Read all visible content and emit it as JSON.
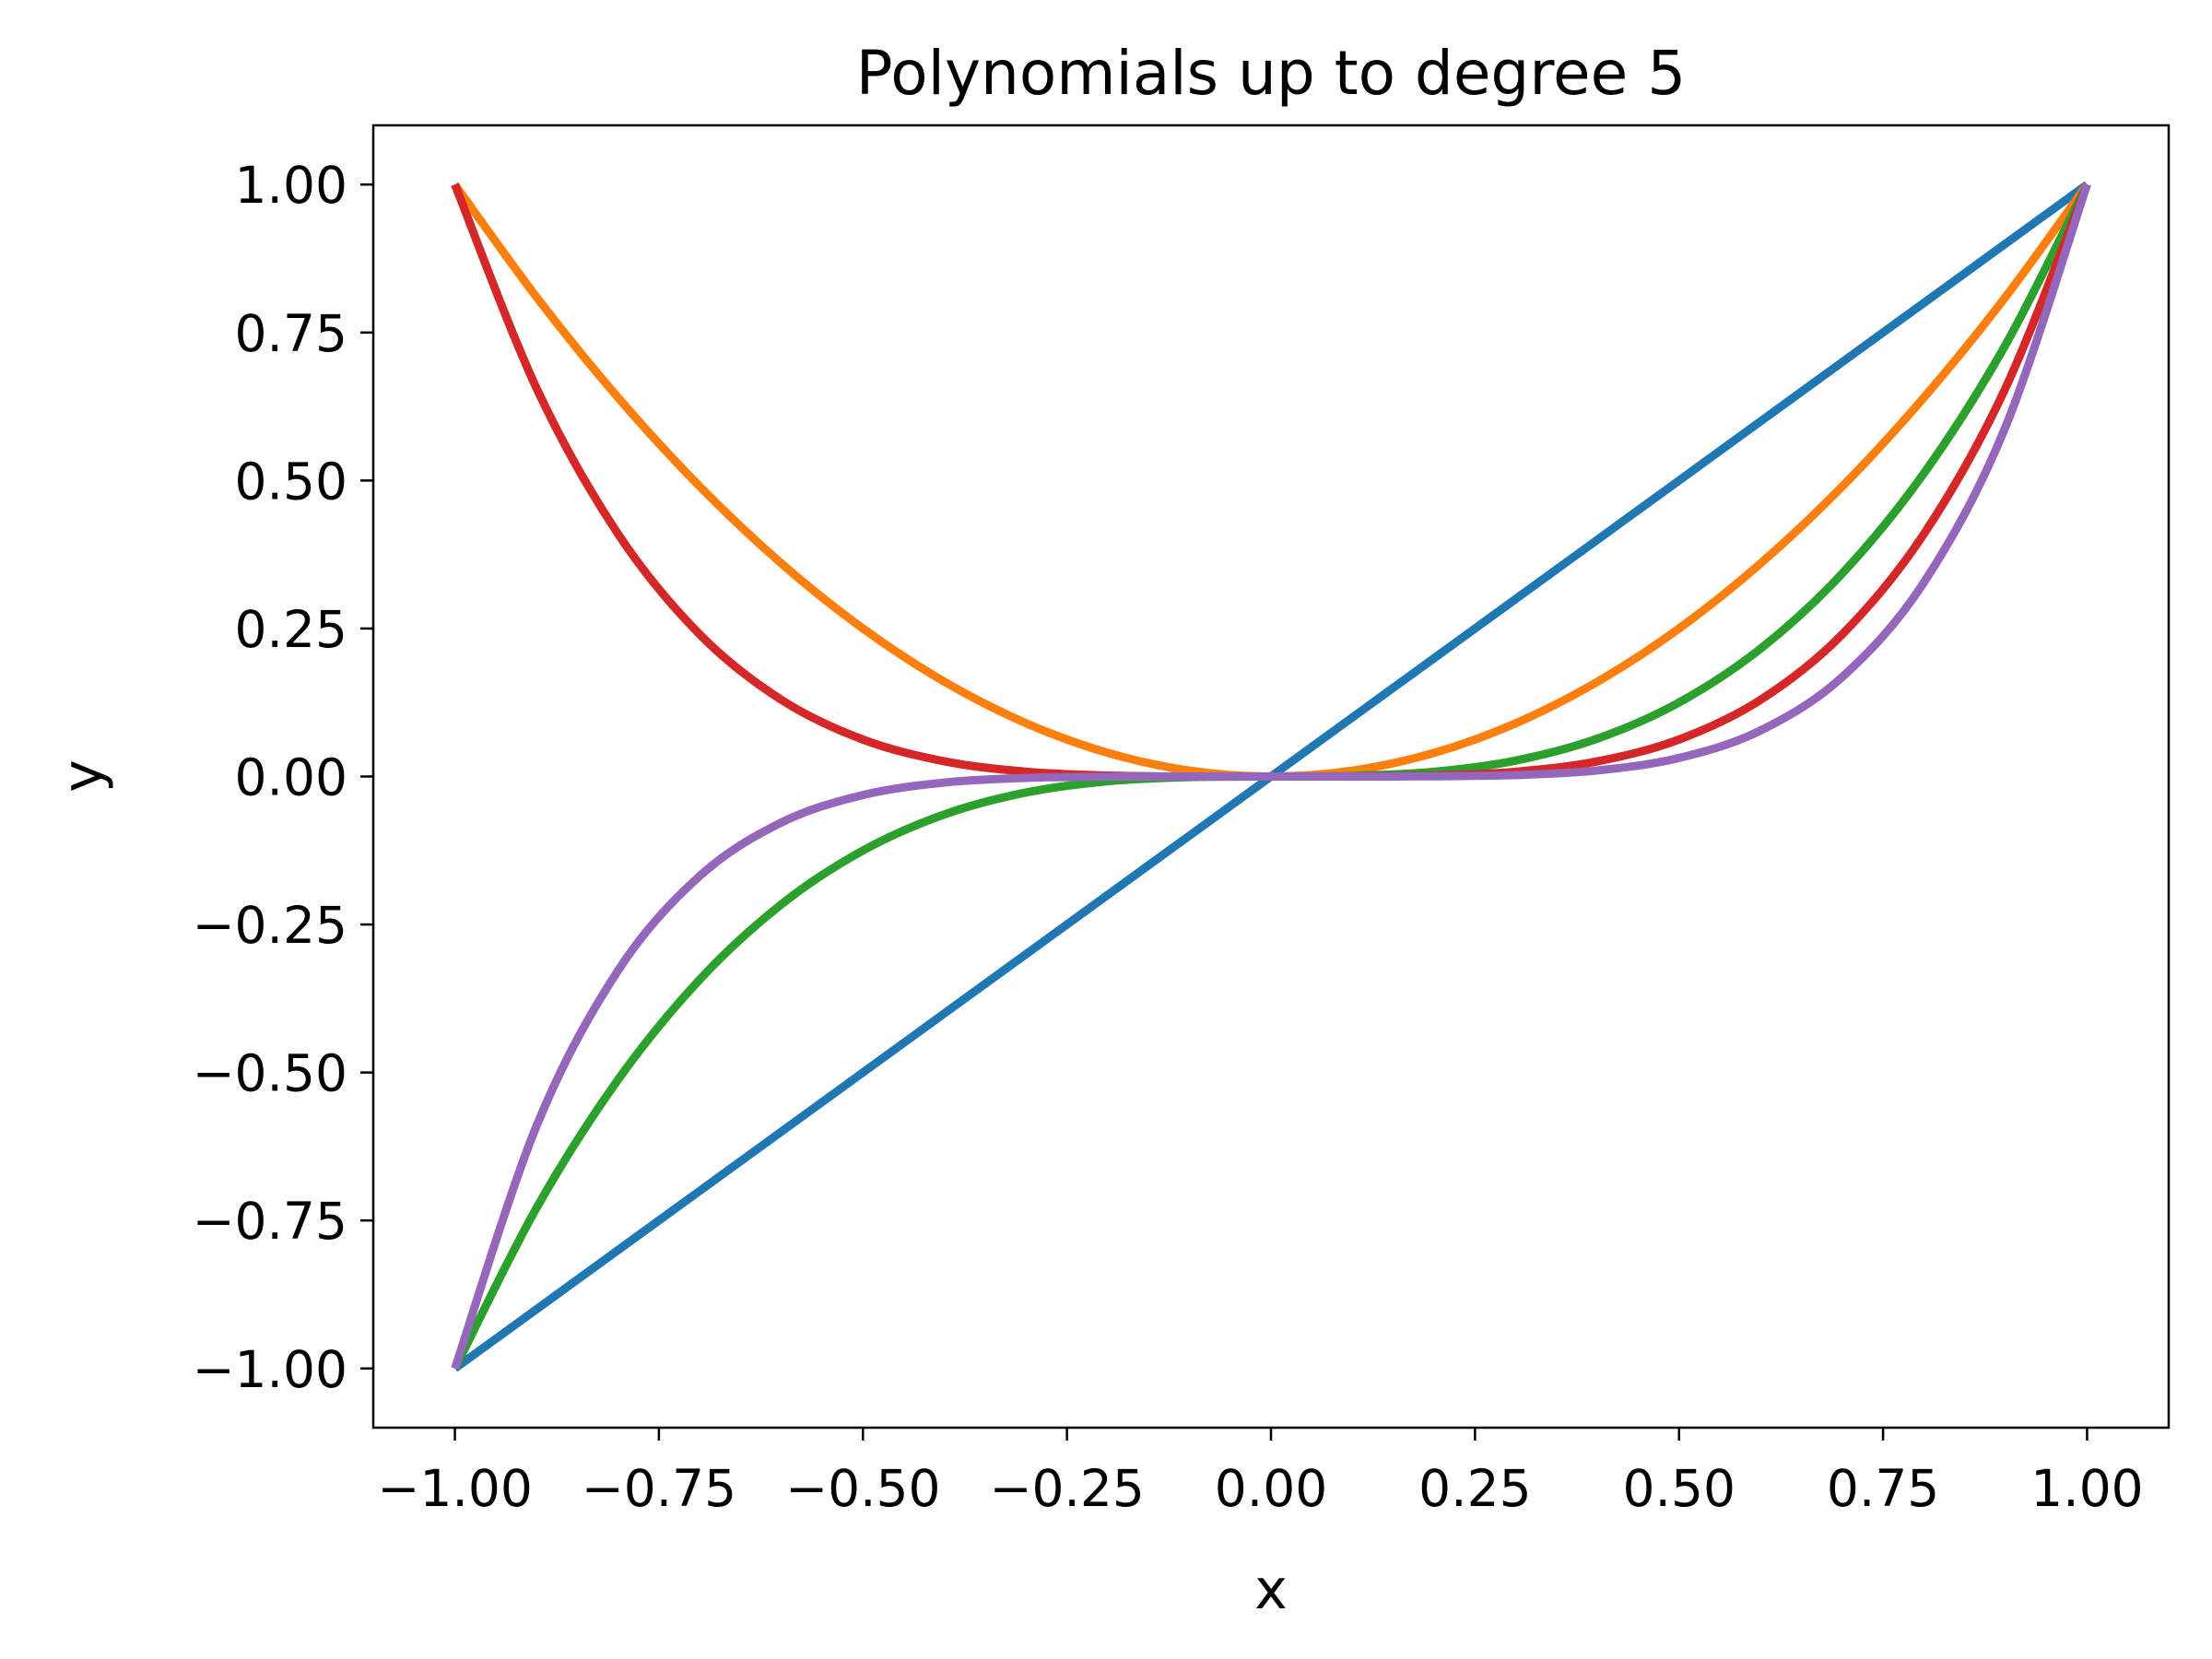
{
  "chart_data": {
    "type": "line",
    "title": "Polynomials up to degree 5",
    "xlabel": "x",
    "ylabel": "y",
    "xlim": [
      -1.1,
      1.1
    ],
    "ylim": [
      -1.1,
      1.1
    ],
    "x_ticks": [
      -1.0,
      -0.75,
      -0.5,
      -0.25,
      0.0,
      0.25,
      0.5,
      0.75,
      1.0
    ],
    "x_tick_labels": [
      "−1.00",
      "−0.75",
      "−0.50",
      "−0.25",
      "0.00",
      "0.25",
      "0.50",
      "0.75",
      "1.00"
    ],
    "y_ticks": [
      1.0,
      0.75,
      0.5,
      0.25,
      0.0,
      -0.25,
      -0.5,
      -0.75,
      -1.0
    ],
    "y_tick_labels": [
      "1.00",
      "0.75",
      "0.50",
      "0.25",
      "0.00",
      "−0.25",
      "−0.50",
      "−0.75",
      "−1.00"
    ],
    "grid": false,
    "legend": "none",
    "x": [
      -1.0,
      -0.9,
      -0.8,
      -0.7,
      -0.6,
      -0.5,
      -0.4,
      -0.3,
      -0.2,
      -0.1,
      0.0,
      0.1,
      0.2,
      0.3,
      0.4,
      0.5,
      0.6,
      0.7,
      0.8,
      0.9,
      1.0
    ],
    "series": [
      {
        "color": "#1f77b4",
        "values": [
          -1.0,
          -0.9,
          -0.8,
          -0.7,
          -0.6,
          -0.5,
          -0.4,
          -0.3,
          -0.2,
          -0.1,
          0.0,
          0.1,
          0.2,
          0.3,
          0.4,
          0.5,
          0.6,
          0.7,
          0.8,
          0.9,
          1.0
        ]
      },
      {
        "color": "#ff7f0e",
        "values": [
          1.0,
          0.81,
          0.64,
          0.49,
          0.36,
          0.25,
          0.16,
          0.09,
          0.04,
          0.01,
          0.0,
          0.01,
          0.04,
          0.09,
          0.16,
          0.25,
          0.36,
          0.49,
          0.64,
          0.81,
          1.0
        ]
      },
      {
        "color": "#2ca02c",
        "values": [
          -1.0,
          -0.729,
          -0.512,
          -0.343,
          -0.216,
          -0.125,
          -0.064,
          -0.027,
          -0.008,
          -0.001,
          0.0,
          0.001,
          0.008,
          0.027,
          0.064,
          0.125,
          0.216,
          0.343,
          0.512,
          0.729,
          1.0
        ]
      },
      {
        "color": "#d62728",
        "values": [
          1.0,
          0.6561,
          0.4096,
          0.2401,
          0.1296,
          0.0625,
          0.0256,
          0.0081,
          0.0016,
          0.0001,
          0.0,
          0.0001,
          0.0016,
          0.0081,
          0.0256,
          0.0625,
          0.1296,
          0.2401,
          0.4096,
          0.6561,
          1.0
        ]
      },
      {
        "color": "#9467bd",
        "values": [
          -1.0,
          -0.59049,
          -0.32768,
          -0.16807,
          -0.07776,
          -0.03125,
          -0.01024,
          -0.00243,
          -0.00032,
          -1e-05,
          0.0,
          1e-05,
          0.00032,
          0.00243,
          0.01024,
          0.03125,
          0.07776,
          0.16807,
          0.32768,
          0.59049,
          1.0
        ]
      }
    ]
  }
}
